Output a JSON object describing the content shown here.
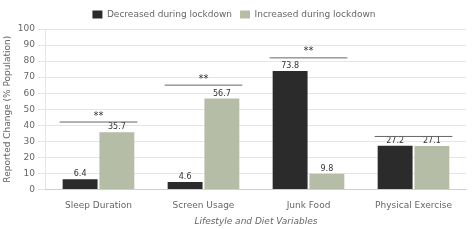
{
  "chart_data": {
    "type": "bar",
    "categories": [
      "Sleep Duration",
      "Screen Usage",
      "Junk Food",
      "Physical Exercise"
    ],
    "series": [
      {
        "name": "Decreased during lockdown",
        "color": "#2b2b2b",
        "values": [
          6.4,
          4.6,
          73.8,
          27.2
        ]
      },
      {
        "name": "Increased during lockdown",
        "color": "#b5bda6",
        "values": [
          35.7,
          56.7,
          9.8,
          27.1
        ]
      }
    ],
    "xlabel": "Lifestyle and Diet Variables",
    "ylabel": "Reported Change (% Population)",
    "ylim": [
      0,
      100
    ],
    "yticks": [
      0,
      10,
      20,
      30,
      40,
      50,
      60,
      70,
      80,
      90,
      100
    ],
    "grid": true,
    "legend": "top",
    "data_labels": true,
    "annotations": [
      {
        "category": "Sleep Duration",
        "y": 42,
        "text": "**"
      },
      {
        "category": "Screen Usage",
        "y": 65,
        "text": "**"
      },
      {
        "category": "Junk Food",
        "y": 82,
        "text": "**"
      },
      {
        "category": "Physical Exercise",
        "y": 33
      }
    ]
  }
}
